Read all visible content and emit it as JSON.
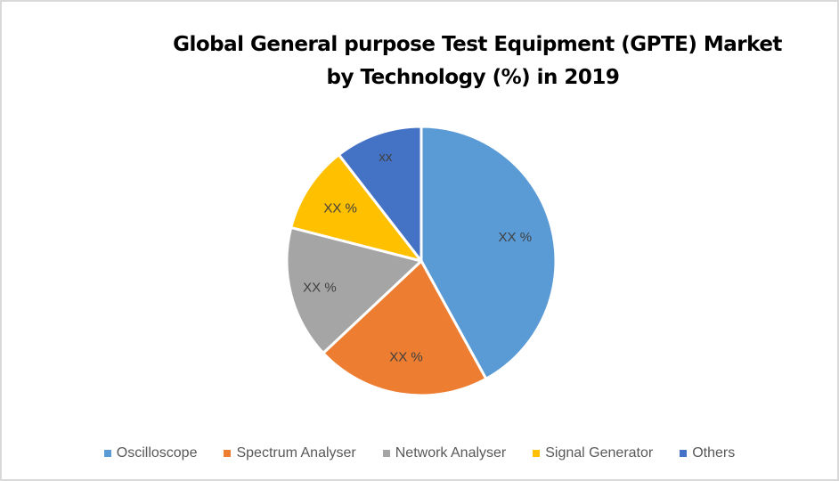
{
  "chart_data": {
    "type": "pie",
    "title": "Global General purpose Test Equipment (GPTE) Market by Technology (%) in 2019",
    "title_lines": [
      "Global General purpose Test Equipment (GPTE) Market",
      "by Technology (%) in 2019"
    ],
    "categories": [
      "Oscilloscope",
      "Spectrum Analyser",
      "Network Analyser",
      "Signal Generator",
      "Others"
    ],
    "values": [
      42,
      21,
      16,
      10.5,
      10.5
    ],
    "data_labels": [
      "XX %",
      "XX %",
      "XX %",
      "XX %",
      "xx"
    ],
    "colors": [
      "#5b9bd5",
      "#ed7d31",
      "#a5a5a5",
      "#ffc000",
      "#4472c4"
    ],
    "start_angle_deg": 0,
    "direction": "clockwise",
    "legend_position": "bottom",
    "xlabel": "",
    "ylabel": ""
  },
  "legend": {
    "items": [
      {
        "label": "Oscilloscope",
        "color": "#5b9bd5"
      },
      {
        "label": "Spectrum Analyser",
        "color": "#ed7d31"
      },
      {
        "label": "Network Analyser",
        "color": "#a5a5a5"
      },
      {
        "label": "Signal Generator",
        "color": "#ffc000"
      },
      {
        "label": "Others",
        "color": "#4472c4"
      }
    ]
  }
}
